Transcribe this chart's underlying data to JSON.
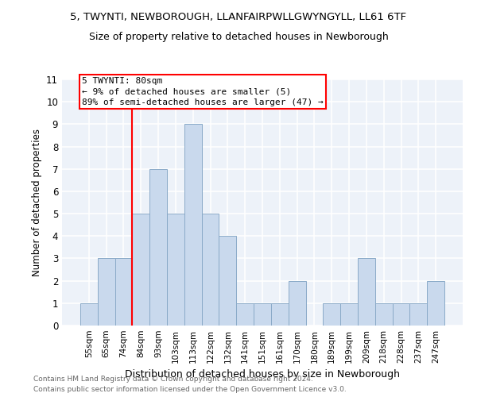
{
  "title_line1": "5, TWYNTI, NEWBOROUGH, LLANFAIRPWLLGWYNGYLL, LL61 6TF",
  "title_line2": "Size of property relative to detached houses in Newborough",
  "xlabel": "Distribution of detached houses by size in Newborough",
  "ylabel": "Number of detached properties",
  "categories": [
    "55sqm",
    "65sqm",
    "74sqm",
    "84sqm",
    "93sqm",
    "103sqm",
    "113sqm",
    "122sqm",
    "132sqm",
    "141sqm",
    "151sqm",
    "161sqm",
    "170sqm",
    "180sqm",
    "189sqm",
    "199sqm",
    "209sqm",
    "218sqm",
    "228sqm",
    "237sqm",
    "247sqm"
  ],
  "values": [
    1,
    3,
    3,
    5,
    7,
    5,
    9,
    5,
    4,
    1,
    1,
    1,
    2,
    0,
    1,
    1,
    3,
    1,
    1,
    1,
    2
  ],
  "bar_color": "#c9d9ed",
  "bar_edge_color": "#8aaac8",
  "ylim": [
    0,
    11
  ],
  "yticks": [
    0,
    1,
    2,
    3,
    4,
    5,
    6,
    7,
    8,
    9,
    10,
    11
  ],
  "red_line_index": 2.5,
  "annotation_line1": "5 TWYNTI: 80sqm",
  "annotation_line2": "← 9% of detached houses are smaller (5)",
  "annotation_line3": "89% of semi-detached houses are larger (47) →",
  "footer_line1": "Contains HM Land Registry data © Crown copyright and database right 2024.",
  "footer_line2": "Contains public sector information licensed under the Open Government Licence v3.0.",
  "background_color": "#edf2f9",
  "grid_color": "#ffffff",
  "title_fontsize": 9.5,
  "subtitle_fontsize": 9,
  "ann_fontsize": 8
}
